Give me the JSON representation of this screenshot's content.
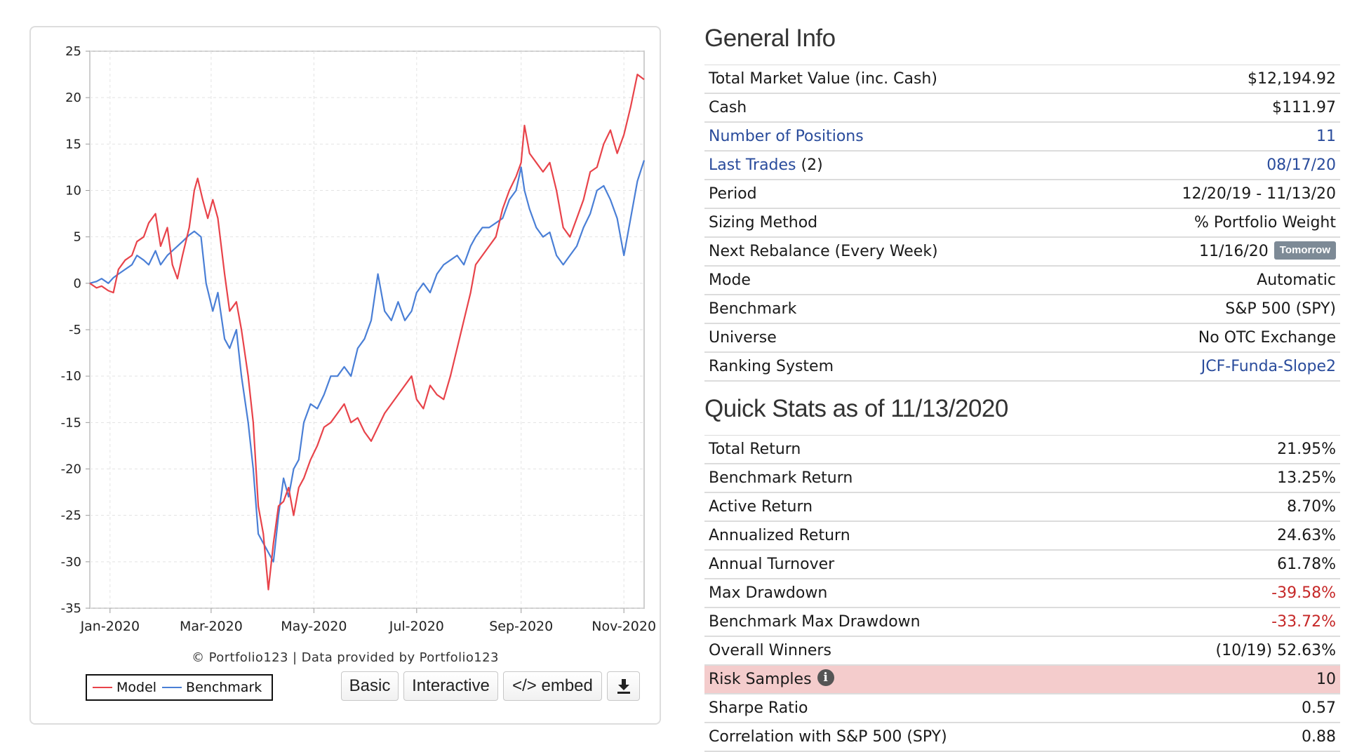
{
  "chart_data": {
    "type": "line",
    "title": "",
    "xlabel": "",
    "ylabel": "",
    "ylim": [
      -35,
      25
    ],
    "y_ticks": [
      "25",
      "20",
      "15",
      "10",
      "5",
      "0",
      "-5",
      "-10",
      "-15",
      "-20",
      "-25",
      "-30",
      "-35"
    ],
    "x_ticks": [
      "Jan-2020",
      "Mar-2020",
      "May-2020",
      "Jul-2020",
      "Sep-2020",
      "Nov-2020"
    ],
    "x_tick_dates": [
      "2020-01-01",
      "2020-03-01",
      "2020-05-01",
      "2020-07-01",
      "2020-09-01",
      "2020-11-01"
    ],
    "x_range": [
      "2019-12-20",
      "2020-11-13"
    ],
    "grid": true,
    "legend_placement": "bottom-left",
    "series": [
      {
        "name": "Model",
        "color": "#e8434a",
        "points": [
          [
            "2019-12-20",
            0
          ],
          [
            "2019-12-24",
            -0.5
          ],
          [
            "2019-12-27",
            -0.3
          ],
          [
            "2019-12-31",
            -0.8
          ],
          [
            "2020-01-03",
            -1
          ],
          [
            "2020-01-06",
            1.5
          ],
          [
            "2020-01-10",
            2.5
          ],
          [
            "2020-01-14",
            3
          ],
          [
            "2020-01-17",
            4.5
          ],
          [
            "2020-01-21",
            5
          ],
          [
            "2020-01-24",
            6.5
          ],
          [
            "2020-01-28",
            7.5
          ],
          [
            "2020-01-31",
            4
          ],
          [
            "2020-02-04",
            6
          ],
          [
            "2020-02-07",
            2
          ],
          [
            "2020-02-10",
            0.5
          ],
          [
            "2020-02-13",
            3
          ],
          [
            "2020-02-17",
            6
          ],
          [
            "2020-02-20",
            10
          ],
          [
            "2020-02-22",
            11.3
          ],
          [
            "2020-02-25",
            9
          ],
          [
            "2020-02-28",
            7
          ],
          [
            "2020-03-02",
            9
          ],
          [
            "2020-03-05",
            7
          ],
          [
            "2020-03-09",
            1
          ],
          [
            "2020-03-12",
            -3
          ],
          [
            "2020-03-16",
            -2
          ],
          [
            "2020-03-19",
            -5
          ],
          [
            "2020-03-23",
            -10
          ],
          [
            "2020-03-26",
            -15
          ],
          [
            "2020-03-29",
            -24
          ],
          [
            "2020-04-01",
            -27
          ],
          [
            "2020-04-04",
            -33
          ],
          [
            "2020-04-07",
            -28
          ],
          [
            "2020-04-10",
            -24
          ],
          [
            "2020-04-13",
            -23.5
          ],
          [
            "2020-04-16",
            -22
          ],
          [
            "2020-04-19",
            -25
          ],
          [
            "2020-04-22",
            -22
          ],
          [
            "2020-04-25",
            -21
          ],
          [
            "2020-04-29",
            -19
          ],
          [
            "2020-05-03",
            -17.5
          ],
          [
            "2020-05-07",
            -15.5
          ],
          [
            "2020-05-11",
            -15
          ],
          [
            "2020-05-15",
            -14
          ],
          [
            "2020-05-19",
            -13
          ],
          [
            "2020-05-23",
            -15
          ],
          [
            "2020-05-27",
            -14.5
          ],
          [
            "2020-05-31",
            -16
          ],
          [
            "2020-06-04",
            -17
          ],
          [
            "2020-06-08",
            -15.5
          ],
          [
            "2020-06-12",
            -14
          ],
          [
            "2020-06-16",
            -13
          ],
          [
            "2020-06-20",
            -12
          ],
          [
            "2020-06-24",
            -11
          ],
          [
            "2020-06-28",
            -10
          ],
          [
            "2020-07-01",
            -12.5
          ],
          [
            "2020-07-05",
            -13.5
          ],
          [
            "2020-07-09",
            -11
          ],
          [
            "2020-07-13",
            -12
          ],
          [
            "2020-07-17",
            -12.5
          ],
          [
            "2020-07-21",
            -10
          ],
          [
            "2020-07-25",
            -7
          ],
          [
            "2020-07-29",
            -4
          ],
          [
            "2020-08-02",
            -1
          ],
          [
            "2020-08-05",
            2
          ],
          [
            "2020-08-09",
            3
          ],
          [
            "2020-08-13",
            4
          ],
          [
            "2020-08-17",
            5
          ],
          [
            "2020-08-21",
            8
          ],
          [
            "2020-08-25",
            10
          ],
          [
            "2020-08-29",
            11.5
          ],
          [
            "2020-09-01",
            13
          ],
          [
            "2020-09-03",
            17
          ],
          [
            "2020-09-06",
            14
          ],
          [
            "2020-09-10",
            13
          ],
          [
            "2020-09-14",
            12
          ],
          [
            "2020-09-18",
            13
          ],
          [
            "2020-09-22",
            10
          ],
          [
            "2020-09-26",
            6
          ],
          [
            "2020-09-30",
            5
          ],
          [
            "2020-10-04",
            7
          ],
          [
            "2020-10-08",
            9
          ],
          [
            "2020-10-12",
            12
          ],
          [
            "2020-10-16",
            12.5
          ],
          [
            "2020-10-20",
            15
          ],
          [
            "2020-10-24",
            16.5
          ],
          [
            "2020-10-28",
            14
          ],
          [
            "2020-11-01",
            16
          ],
          [
            "2020-11-05",
            19
          ],
          [
            "2020-11-09",
            22.5
          ],
          [
            "2020-11-13",
            21.95
          ]
        ]
      },
      {
        "name": "Benchmark",
        "color": "#4a7fd6",
        "points": [
          [
            "2019-12-20",
            0
          ],
          [
            "2019-12-24",
            0.2
          ],
          [
            "2019-12-27",
            0.5
          ],
          [
            "2019-12-31",
            0
          ],
          [
            "2020-01-03",
            0.6
          ],
          [
            "2020-01-06",
            1
          ],
          [
            "2020-01-10",
            1.5
          ],
          [
            "2020-01-14",
            2
          ],
          [
            "2020-01-17",
            3
          ],
          [
            "2020-01-21",
            2.5
          ],
          [
            "2020-01-24",
            2
          ],
          [
            "2020-01-28",
            3.5
          ],
          [
            "2020-01-31",
            2
          ],
          [
            "2020-02-04",
            3
          ],
          [
            "2020-02-07",
            3.5
          ],
          [
            "2020-02-10",
            4
          ],
          [
            "2020-02-13",
            4.5
          ],
          [
            "2020-02-17",
            5.2
          ],
          [
            "2020-02-20",
            5.6
          ],
          [
            "2020-02-24",
            5
          ],
          [
            "2020-02-27",
            0
          ],
          [
            "2020-03-02",
            -3
          ],
          [
            "2020-03-05",
            -1
          ],
          [
            "2020-03-09",
            -6
          ],
          [
            "2020-03-12",
            -7
          ],
          [
            "2020-03-16",
            -5
          ],
          [
            "2020-03-19",
            -10
          ],
          [
            "2020-03-23",
            -15
          ],
          [
            "2020-03-26",
            -20
          ],
          [
            "2020-03-29",
            -27
          ],
          [
            "2020-04-01",
            -28
          ],
          [
            "2020-04-04",
            -29
          ],
          [
            "2020-04-07",
            -30
          ],
          [
            "2020-04-10",
            -25
          ],
          [
            "2020-04-13",
            -21
          ],
          [
            "2020-04-16",
            -23
          ],
          [
            "2020-04-19",
            -20
          ],
          [
            "2020-04-22",
            -19
          ],
          [
            "2020-04-25",
            -15
          ],
          [
            "2020-04-29",
            -13
          ],
          [
            "2020-05-03",
            -13.5
          ],
          [
            "2020-05-07",
            -12
          ],
          [
            "2020-05-11",
            -10
          ],
          [
            "2020-05-15",
            -10
          ],
          [
            "2020-05-19",
            -9
          ],
          [
            "2020-05-23",
            -10
          ],
          [
            "2020-05-27",
            -7
          ],
          [
            "2020-05-31",
            -6
          ],
          [
            "2020-06-04",
            -4
          ],
          [
            "2020-06-08",
            1
          ],
          [
            "2020-06-12",
            -3
          ],
          [
            "2020-06-16",
            -4
          ],
          [
            "2020-06-20",
            -2
          ],
          [
            "2020-06-24",
            -4
          ],
          [
            "2020-06-28",
            -3
          ],
          [
            "2020-07-01",
            -1
          ],
          [
            "2020-07-05",
            0
          ],
          [
            "2020-07-09",
            -1
          ],
          [
            "2020-07-13",
            1
          ],
          [
            "2020-07-17",
            2
          ],
          [
            "2020-07-21",
            2.5
          ],
          [
            "2020-07-25",
            3
          ],
          [
            "2020-07-29",
            2
          ],
          [
            "2020-08-02",
            4
          ],
          [
            "2020-08-05",
            5
          ],
          [
            "2020-08-09",
            6
          ],
          [
            "2020-08-13",
            6
          ],
          [
            "2020-08-17",
            6.5
          ],
          [
            "2020-08-21",
            7
          ],
          [
            "2020-08-25",
            9
          ],
          [
            "2020-08-29",
            10
          ],
          [
            "2020-09-01",
            12.5
          ],
          [
            "2020-09-03",
            10
          ],
          [
            "2020-09-06",
            8
          ],
          [
            "2020-09-10",
            6
          ],
          [
            "2020-09-14",
            5
          ],
          [
            "2020-09-18",
            5.5
          ],
          [
            "2020-09-22",
            3
          ],
          [
            "2020-09-26",
            2
          ],
          [
            "2020-09-30",
            3
          ],
          [
            "2020-10-04",
            4
          ],
          [
            "2020-10-08",
            6
          ],
          [
            "2020-10-12",
            7.5
          ],
          [
            "2020-10-16",
            10
          ],
          [
            "2020-10-20",
            10.5
          ],
          [
            "2020-10-24",
            9
          ],
          [
            "2020-10-28",
            7
          ],
          [
            "2020-11-01",
            3
          ],
          [
            "2020-11-05",
            7
          ],
          [
            "2020-11-09",
            11
          ],
          [
            "2020-11-13",
            13.25
          ]
        ]
      }
    ]
  },
  "chart_footer": {
    "credit": "© Portfolio123 | Data provided by Portfolio123",
    "legend_model": "Model",
    "legend_benchmark": "Benchmark",
    "btn_basic": "Basic",
    "btn_interactive": "Interactive",
    "btn_embed": "</> embed",
    "download_icon": "download-icon"
  },
  "general_info": {
    "title": "General Info",
    "rows": [
      {
        "label": "Total Market Value (inc. Cash)",
        "value": "$12,194.92"
      },
      {
        "label": "Cash",
        "value": "$111.97"
      },
      {
        "label": "Number of Positions",
        "value": "11"
      },
      {
        "label": "Last Trades",
        "label_suffix": "(2)",
        "value": "08/17/20"
      },
      {
        "label": "Period",
        "value": "12/20/19 - 11/13/20"
      },
      {
        "label": "Sizing Method",
        "value": "% Portfolio Weight"
      },
      {
        "label": "Next Rebalance (Every Week)",
        "value": "11/16/20",
        "badge": "Tomorrow"
      },
      {
        "label": "Mode",
        "value": "Automatic"
      },
      {
        "label": "Benchmark",
        "value": "S&P 500 (SPY)"
      },
      {
        "label": "Universe",
        "value": "No OTC Exchange"
      },
      {
        "label": "Ranking System",
        "value": "JCF-Funda-Slope2"
      }
    ]
  },
  "quick_stats": {
    "title": "Quick Stats as of 11/13/2020",
    "rows": [
      {
        "label": "Total Return",
        "value": "21.95%"
      },
      {
        "label": "Benchmark Return",
        "value": "13.25%"
      },
      {
        "label": "Active Return",
        "value": "8.70%"
      },
      {
        "label": "Annualized Return",
        "value": "24.63%"
      },
      {
        "label": "Annual Turnover",
        "value": "61.78%"
      },
      {
        "label": "Max Drawdown",
        "value": "-39.58%"
      },
      {
        "label": "Benchmark Max Drawdown",
        "value": "-33.72%"
      },
      {
        "label": "Overall Winners",
        "value": "(10/19) 52.63%"
      },
      {
        "label": "Risk Samples",
        "value": "10",
        "info_icon": "i"
      },
      {
        "label": "Sharpe Ratio",
        "value": "0.57"
      },
      {
        "label": "Correlation with S&P 500 (SPY)",
        "value": "0.88"
      }
    ]
  },
  "colors": {
    "link": "#2a4c9c",
    "negative": "#c62828",
    "highlight_row": "#f4cccc",
    "badge": "#7d8a96"
  }
}
